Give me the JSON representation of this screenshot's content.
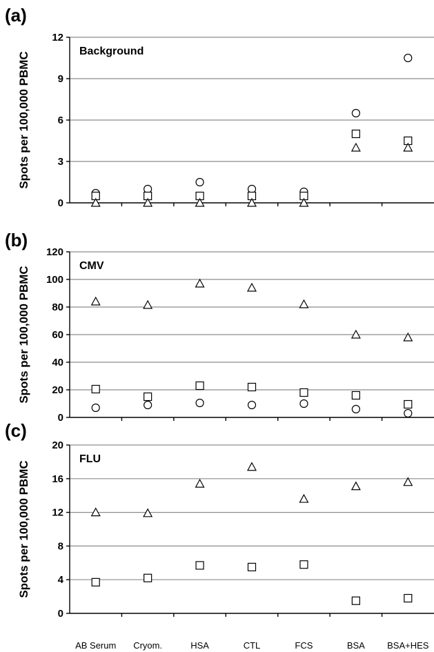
{
  "chart_data": [
    {
      "type": "scatter",
      "panel_label": "(a)",
      "title": "Background",
      "ylabel": "Spots per 100,000 PBMC",
      "ylim": [
        0,
        12
      ],
      "yticks": [
        0,
        3,
        6,
        9,
        12
      ],
      "grid": true,
      "categories": [
        "AB Serum",
        "Cryom.",
        "HSA",
        "CTL",
        "FCS",
        "BSA",
        "BSA+HES"
      ],
      "series": [
        {
          "marker": "circle",
          "values": [
            0.7,
            1.0,
            1.5,
            1.0,
            0.8,
            6.5,
            10.5
          ]
        },
        {
          "marker": "square",
          "values": [
            0.5,
            0.5,
            0.5,
            0.5,
            0.5,
            5.0,
            4.5
          ]
        },
        {
          "marker": "triangle",
          "values": [
            0.0,
            0.0,
            0.0,
            0.0,
            0.0,
            4.0,
            4.0
          ]
        }
      ]
    },
    {
      "type": "scatter",
      "panel_label": "(b)",
      "title": "CMV",
      "ylabel": "Spots per 100,000 PBMC",
      "ylim": [
        0,
        120
      ],
      "yticks": [
        0,
        20,
        40,
        60,
        80,
        100,
        120
      ],
      "grid": true,
      "categories": [
        "AB Serum",
        "Cryom.",
        "HSA",
        "CTL",
        "FCS",
        "BSA",
        "BSA+HES"
      ],
      "series": [
        {
          "marker": "circle",
          "values": [
            7,
            9,
            10.5,
            9,
            10,
            6,
            3
          ]
        },
        {
          "marker": "square",
          "values": [
            20.5,
            15,
            23,
            22,
            18,
            16,
            9.5
          ]
        },
        {
          "marker": "triangle",
          "values": [
            84,
            81.5,
            97,
            94,
            82,
            60,
            58
          ]
        }
      ]
    },
    {
      "type": "scatter",
      "panel_label": "(c)",
      "title": "FLU",
      "ylabel": "Spots per 100,000 PBMC",
      "ylim": [
        0,
        20
      ],
      "yticks": [
        0,
        4,
        8,
        12,
        16,
        20
      ],
      "grid": true,
      "categories": [
        "AB Serum",
        "Cryom.",
        "HSA",
        "CTL",
        "FCS",
        "BSA",
        "BSA+HES"
      ],
      "series": [
        {
          "marker": "square",
          "values": [
            3.7,
            4.2,
            5.7,
            5.5,
            5.8,
            1.5,
            1.8
          ]
        },
        {
          "marker": "triangle",
          "values": [
            12,
            11.9,
            15.4,
            17.4,
            13.6,
            15.1,
            15.6
          ]
        }
      ]
    }
  ]
}
